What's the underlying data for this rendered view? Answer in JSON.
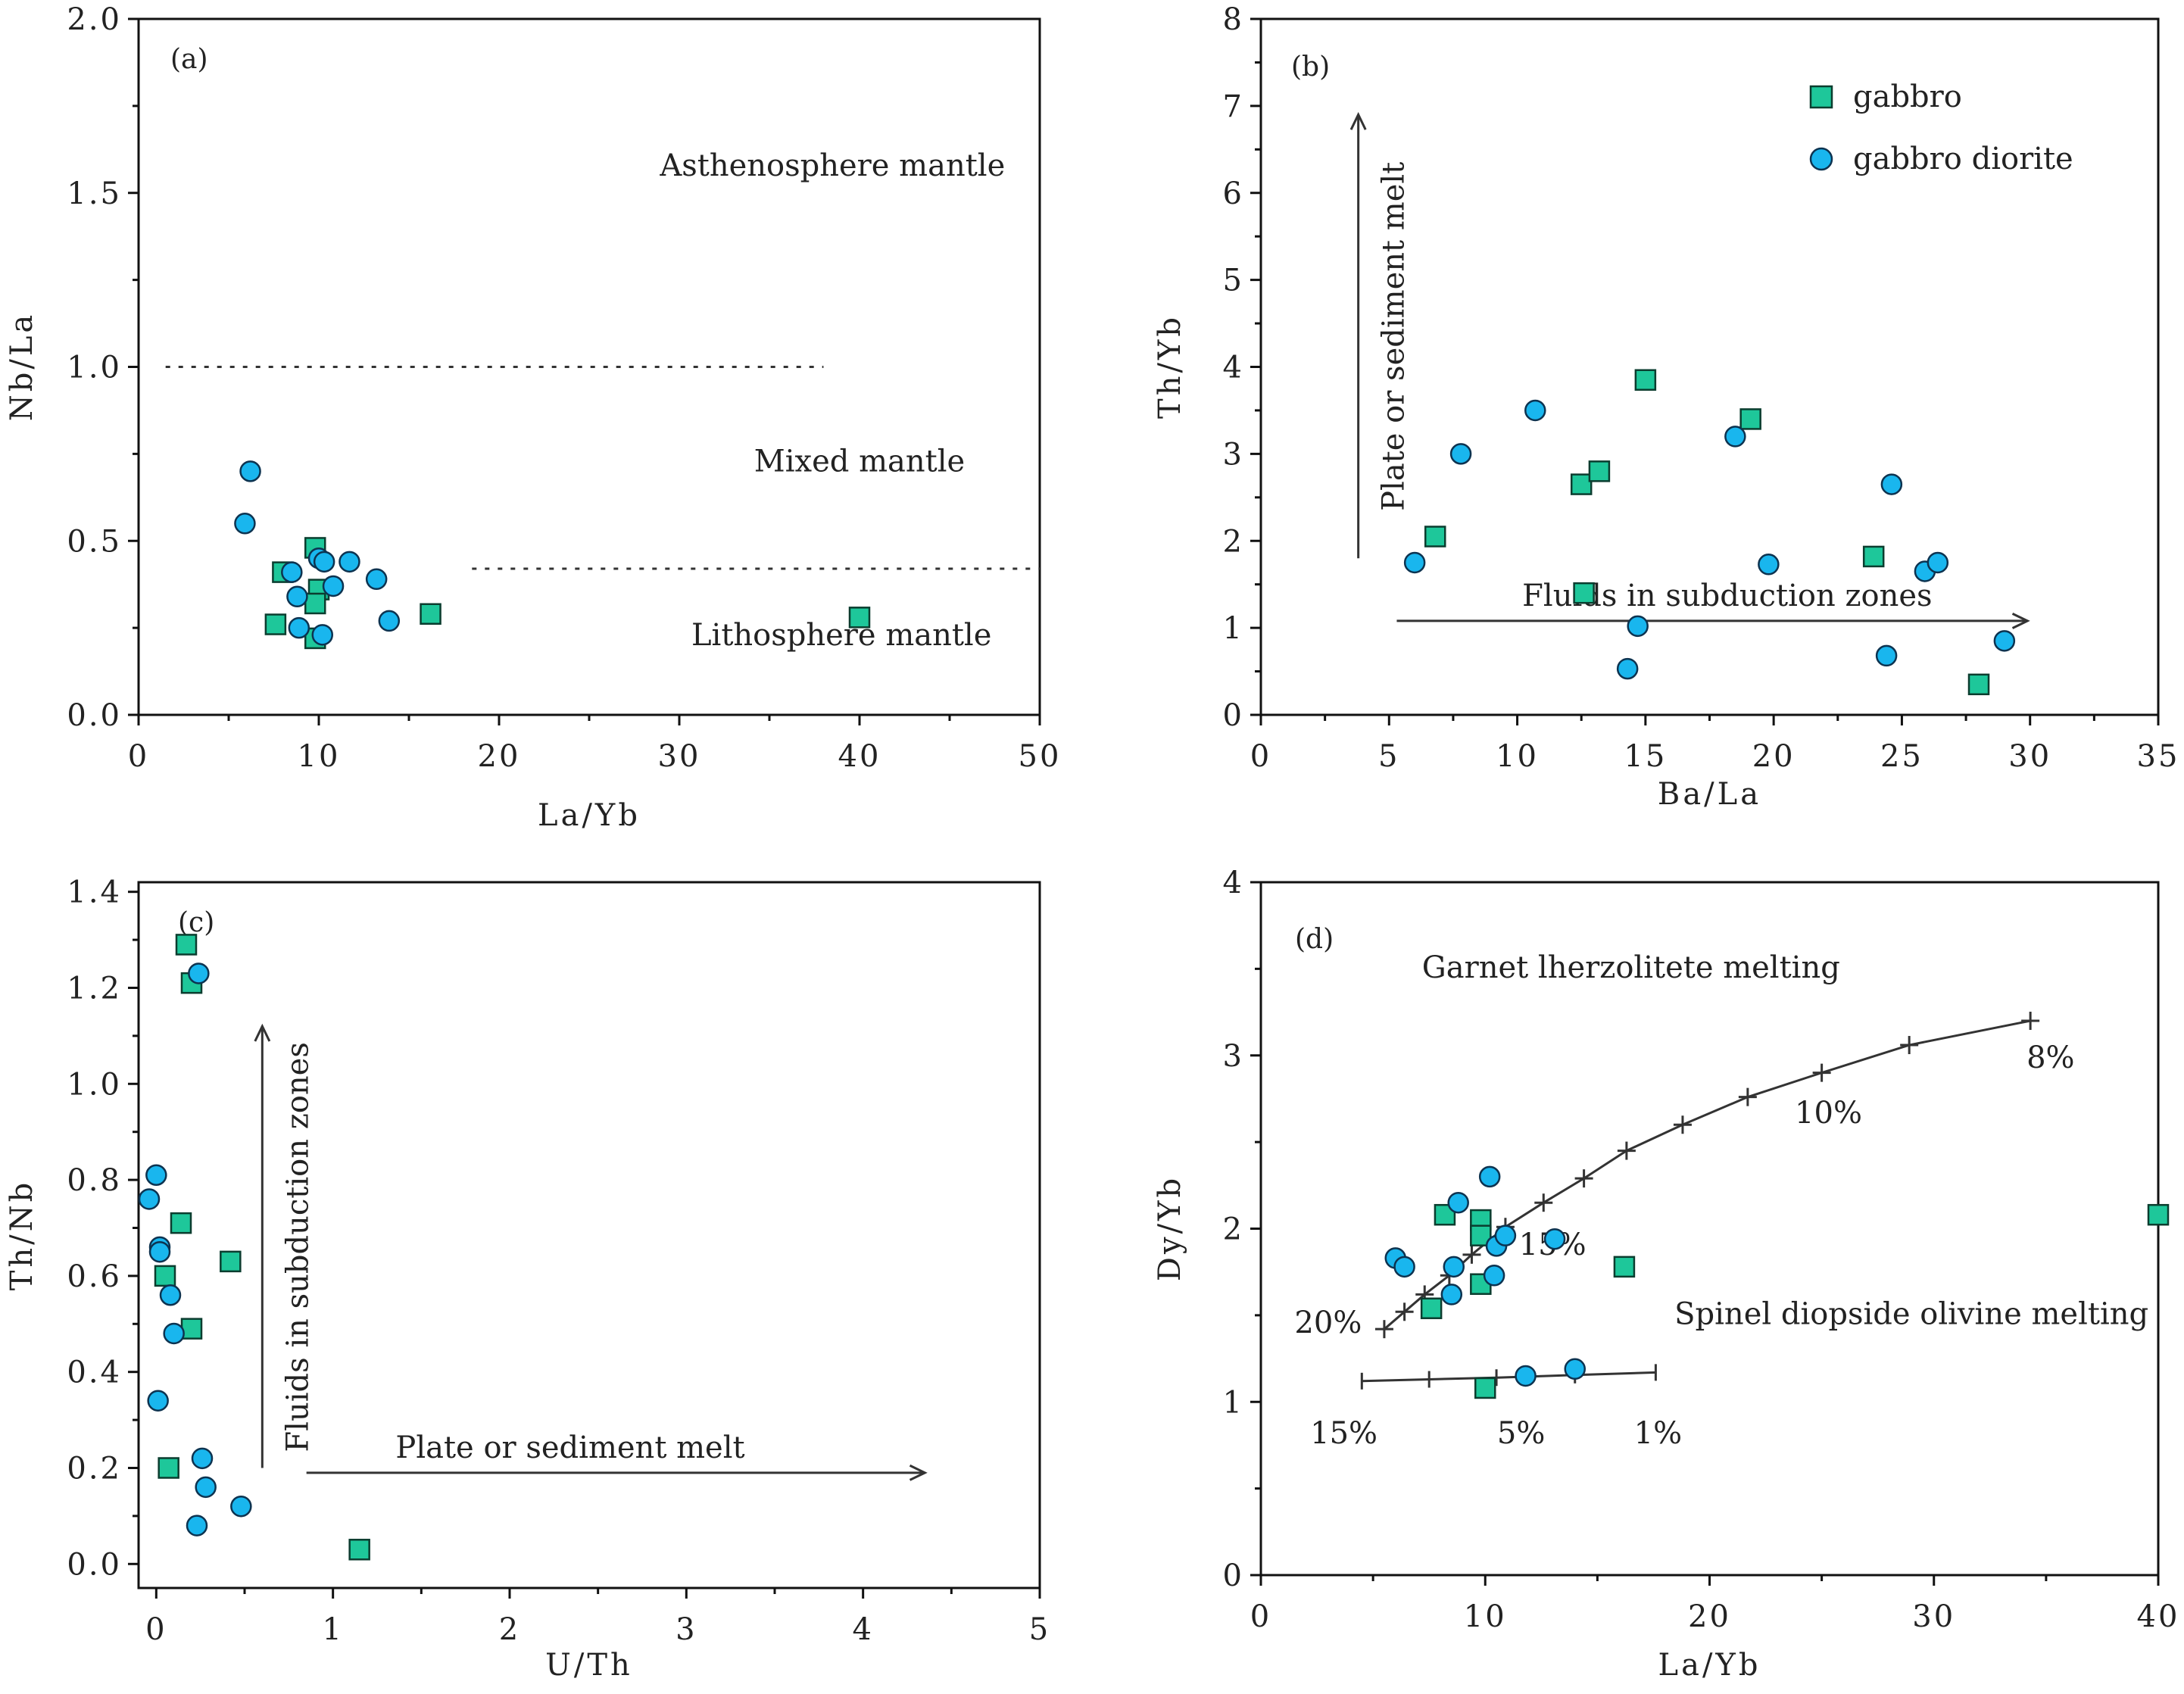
{
  "colors": {
    "gabbro": "#1ec79a",
    "gabbro_diorite": "#19b6ee",
    "axes": "#111111",
    "text": "#222222"
  },
  "legend": {
    "items": [
      {
        "label": "gabbro",
        "marker": "square"
      },
      {
        "label": "gabbro diorite",
        "marker": "circle"
      }
    ],
    "placement": "panel-b top-right"
  },
  "chart_data": [
    {
      "id": "a",
      "type": "scatter",
      "panel_label": "(a)",
      "xlabel": "La/Yb",
      "ylabel": "Nb/La",
      "xlim": [
        0,
        50
      ],
      "ylim": [
        0,
        2.0
      ],
      "xticks": [
        "0",
        "10",
        "20",
        "30",
        "40",
        "50"
      ],
      "yticks": [
        "0.0",
        "0.5",
        "1.0",
        "1.5",
        "2.0"
      ],
      "grid": false,
      "series": [
        {
          "name": "gabbro",
          "marker": "square",
          "points": [
            [
              8.0,
              0.41
            ],
            [
              9.8,
              0.48
            ],
            [
              10.0,
              0.36
            ],
            [
              9.8,
              0.32
            ],
            [
              7.6,
              0.26
            ],
            [
              9.8,
              0.22
            ],
            [
              16.2,
              0.29
            ],
            [
              40.0,
              0.28
            ]
          ]
        },
        {
          "name": "gabbro diorite",
          "marker": "circle",
          "points": [
            [
              6.2,
              0.7
            ],
            [
              5.9,
              0.55
            ],
            [
              8.5,
              0.41
            ],
            [
              8.8,
              0.34
            ],
            [
              8.9,
              0.25
            ],
            [
              10.0,
              0.45
            ],
            [
              10.3,
              0.44
            ],
            [
              10.2,
              0.23
            ],
            [
              10.8,
              0.37
            ],
            [
              11.7,
              0.44
            ],
            [
              13.2,
              0.39
            ],
            [
              13.9,
              0.27
            ]
          ]
        }
      ],
      "reference_lines": [
        {
          "style": "dotted",
          "points": [
            [
              1.5,
              1.0
            ],
            [
              38.0,
              1.0
            ]
          ]
        },
        {
          "style": "dotted",
          "points": [
            [
              18.5,
              0.42
            ],
            [
              50.0,
              0.42
            ]
          ]
        }
      ],
      "annotations": [
        {
          "text": "Asthenosphere mantle",
          "x": 38.5,
          "y": 1.55
        },
        {
          "text": "Mixed mantle",
          "x": 40.0,
          "y": 0.7
        },
        {
          "text": "Lithosphere mantle",
          "x": 39.0,
          "y": 0.2
        }
      ]
    },
    {
      "id": "b",
      "type": "scatter",
      "panel_label": "(b)",
      "xlabel": "Ba/La",
      "ylabel": "Th/Yb",
      "xlim": [
        0,
        35
      ],
      "ylim": [
        0,
        8
      ],
      "xticks": [
        "0",
        "5",
        "10",
        "15",
        "20",
        "25",
        "30",
        "35"
      ],
      "yticks": [
        "0",
        "1",
        "2",
        "3",
        "4",
        "5",
        "6",
        "7",
        "8"
      ],
      "grid": false,
      "series": [
        {
          "name": "gabbro",
          "marker": "square",
          "points": [
            [
              6.8,
              2.05
            ],
            [
              12.5,
              2.65
            ],
            [
              13.2,
              2.8
            ],
            [
              12.6,
              1.4
            ],
            [
              15.0,
              3.85
            ],
            [
              19.1,
              3.4
            ],
            [
              23.9,
              1.82
            ],
            [
              28.0,
              0.35
            ]
          ]
        },
        {
          "name": "gabbro diorite",
          "marker": "circle",
          "points": [
            [
              6.0,
              1.75
            ],
            [
              7.8,
              3.0
            ],
            [
              10.7,
              3.5
            ],
            [
              14.3,
              0.53
            ],
            [
              14.7,
              1.02
            ],
            [
              18.5,
              3.2
            ],
            [
              19.8,
              1.73
            ],
            [
              24.4,
              0.68
            ],
            [
              24.6,
              2.65
            ],
            [
              25.9,
              1.65
            ],
            [
              26.4,
              1.75
            ],
            [
              29.0,
              0.85
            ]
          ]
        }
      ],
      "arrows": [
        {
          "label": "Plate or sediment melt",
          "from": [
            3.8,
            1.8
          ],
          "to": [
            3.8,
            6.9
          ]
        },
        {
          "label": "Fluids in subduction zones",
          "from": [
            5.3,
            1.08
          ],
          "to": [
            29.9,
            1.08
          ]
        }
      ]
    },
    {
      "id": "c",
      "type": "scatter",
      "panel_label": "(c)",
      "xlabel": "U/Th",
      "ylabel": "Th/Nb",
      "xlim": [
        -0.1,
        5
      ],
      "ylim": [
        -0.05,
        1.42
      ],
      "xticks": [
        "0",
        "1",
        "2",
        "3",
        "4",
        "5"
      ],
      "yticks": [
        "0.0",
        "0.2",
        "0.4",
        "0.6",
        "0.8",
        "1.0",
        "1.2",
        "1.4"
      ],
      "grid": false,
      "series": [
        {
          "name": "gabbro",
          "marker": "square",
          "points": [
            [
              0.17,
              1.29
            ],
            [
              0.2,
              1.21
            ],
            [
              0.14,
              0.71
            ],
            [
              0.05,
              0.6
            ],
            [
              0.2,
              0.49
            ],
            [
              0.42,
              0.63
            ],
            [
              0.07,
              0.2
            ],
            [
              1.15,
              0.03
            ]
          ]
        },
        {
          "name": "gabbro diorite",
          "marker": "circle",
          "points": [
            [
              0.24,
              1.23
            ],
            [
              0.0,
              0.81
            ],
            [
              -0.04,
              0.76
            ],
            [
              0.02,
              0.66
            ],
            [
              0.02,
              0.65
            ],
            [
              0.08,
              0.56
            ],
            [
              0.1,
              0.48
            ],
            [
              0.01,
              0.34
            ],
            [
              0.26,
              0.22
            ],
            [
              0.28,
              0.16
            ],
            [
              0.48,
              0.12
            ],
            [
              0.23,
              0.08
            ]
          ]
        }
      ],
      "arrows": [
        {
          "label": "Fluids in subduction zones",
          "from": [
            0.6,
            0.2
          ],
          "to": [
            0.6,
            1.12
          ]
        },
        {
          "label": "Plate or sediment melt",
          "from": [
            0.85,
            0.19
          ],
          "to": [
            4.35,
            0.19
          ]
        }
      ]
    },
    {
      "id": "d",
      "type": "scatter",
      "panel_label": "(d)",
      "xlabel": "La/Yb",
      "ylabel": "Dy/Yb",
      "xlim": [
        0,
        40
      ],
      "ylim": [
        0,
        4
      ],
      "xticks": [
        "0",
        "10",
        "20",
        "30",
        "40"
      ],
      "yticks": [
        "0",
        "1",
        "2",
        "3",
        "4"
      ],
      "grid": false,
      "series": [
        {
          "name": "gabbro",
          "marker": "square",
          "points": [
            [
              8.2,
              2.08
            ],
            [
              9.8,
              2.05
            ],
            [
              9.8,
              1.96
            ],
            [
              7.6,
              1.54
            ],
            [
              9.8,
              1.68
            ],
            [
              16.2,
              1.78
            ],
            [
              10.0,
              1.08
            ],
            [
              40.0,
              2.08
            ]
          ]
        },
        {
          "name": "gabbro diorite",
          "marker": "circle",
          "points": [
            [
              6.0,
              1.83
            ],
            [
              6.4,
              1.78
            ],
            [
              8.6,
              1.78
            ],
            [
              8.5,
              1.62
            ],
            [
              8.8,
              2.15
            ],
            [
              10.2,
              2.3
            ],
            [
              10.4,
              1.73
            ],
            [
              10.5,
              1.9
            ],
            [
              10.9,
              1.96
            ],
            [
              13.1,
              1.94
            ],
            [
              11.8,
              1.15
            ],
            [
              14.0,
              1.19
            ]
          ]
        }
      ],
      "melting_curves": [
        {
          "name": "Garnet lherzolitete melting",
          "points": [
            [
              5.5,
              1.42
            ],
            [
              6.4,
              1.52
            ],
            [
              7.3,
              1.62
            ],
            [
              8.4,
              1.73
            ],
            [
              9.4,
              1.85
            ],
            [
              10.9,
              2.01
            ],
            [
              12.6,
              2.15
            ],
            [
              14.4,
              2.29
            ],
            [
              16.3,
              2.45
            ],
            [
              18.8,
              2.6
            ],
            [
              21.7,
              2.76
            ],
            [
              25.0,
              2.9
            ],
            [
              28.9,
              3.06
            ],
            [
              34.3,
              3.2
            ]
          ]
        },
        {
          "name": "Spinel diopside olivine melting",
          "points": [
            [
              4.5,
              1.12
            ],
            [
              7.5,
              1.13
            ],
            [
              10.5,
              1.14
            ],
            [
              14.0,
              1.155
            ],
            [
              17.6,
              1.17
            ]
          ]
        }
      ],
      "annotations": [
        {
          "text": "Garnet lherzolitete melting",
          "x": 16.5,
          "y": 3.45
        },
        {
          "text": "Spinel diopside olivine melting",
          "x": 29.0,
          "y": 1.45
        },
        {
          "text": "20%",
          "x": 3.0,
          "y": 1.4
        },
        {
          "text": "15%",
          "x": 13.0,
          "y": 1.85
        },
        {
          "text": "10%",
          "x": 25.3,
          "y": 2.61
        },
        {
          "text": "8%",
          "x": 35.2,
          "y": 2.93
        },
        {
          "text": "15%",
          "x": 3.7,
          "y": 0.76
        },
        {
          "text": "5%",
          "x": 11.6,
          "y": 0.76
        },
        {
          "text": "1%",
          "x": 17.7,
          "y": 0.76
        }
      ]
    }
  ]
}
